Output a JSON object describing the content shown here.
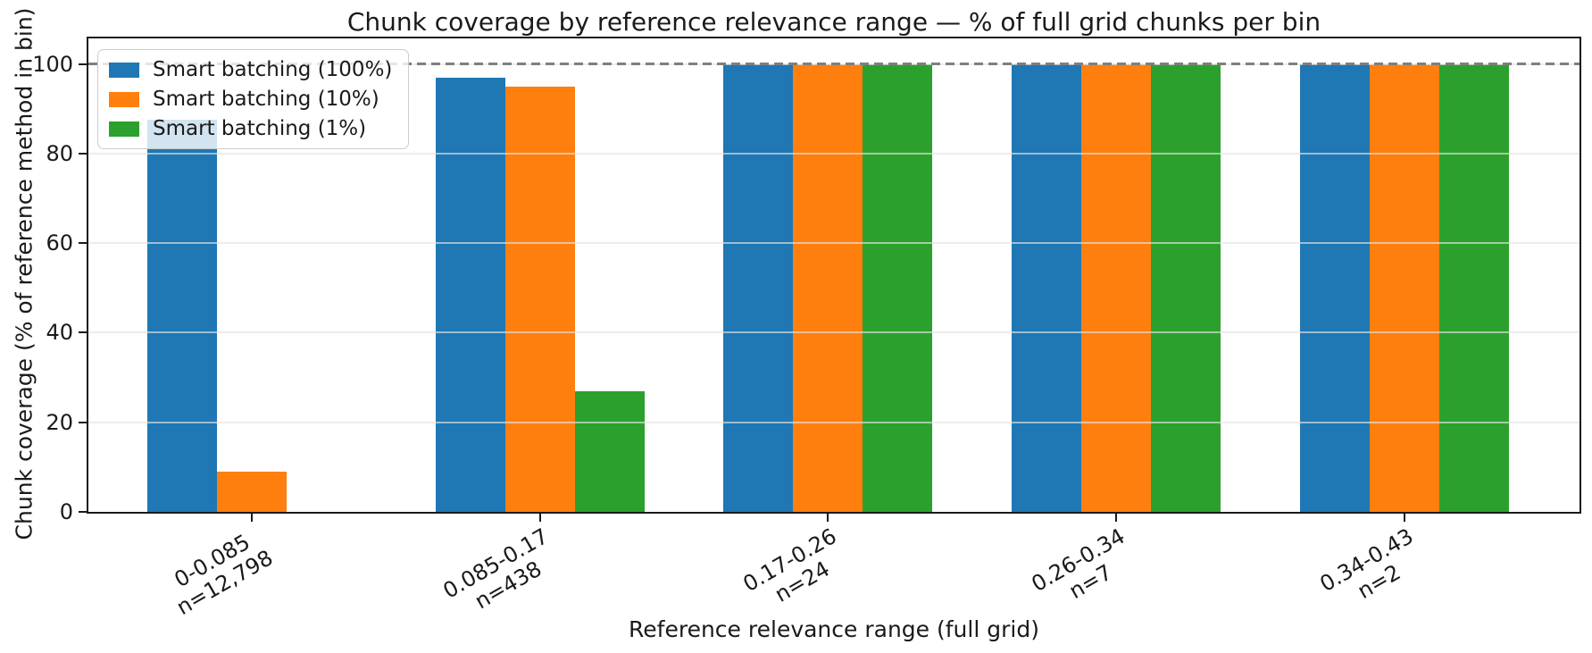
{
  "chart_data": {
    "type": "bar",
    "title": "Chunk coverage by reference relevance range — % of full grid chunks per bin",
    "xlabel": "Reference relevance range (full grid)",
    "ylabel": "Chunk coverage (% of reference method in bin)",
    "categories": [
      {
        "range": "0-0.085",
        "count": "n=12,798"
      },
      {
        "range": "0.085-0.17",
        "count": "n=438"
      },
      {
        "range": "0.17-0.26",
        "count": "n=24"
      },
      {
        "range": "0.26-0.34",
        "count": "n=7"
      },
      {
        "range": "0.34-0.43",
        "count": "n=2"
      }
    ],
    "series": [
      {
        "name": "Smart batching (100%)",
        "color": "#1f77b4",
        "values": [
          87.5,
          97,
          100,
          100,
          100
        ]
      },
      {
        "name": "Smart batching (10%)",
        "color": "#ff7f0e",
        "values": [
          9,
          95,
          100,
          100,
          100
        ]
      },
      {
        "name": "Smart batching (1%)",
        "color": "#2ca02c",
        "values": [
          0,
          27,
          100,
          100,
          100
        ]
      }
    ],
    "yticks": [
      0,
      20,
      40,
      60,
      80,
      100
    ],
    "ylim": [
      0,
      105.7
    ],
    "grid": "horizontal",
    "legend_position": "upper-left",
    "reference_line": {
      "y": 100,
      "style": "dashed",
      "color": "#7f7f7f"
    }
  }
}
